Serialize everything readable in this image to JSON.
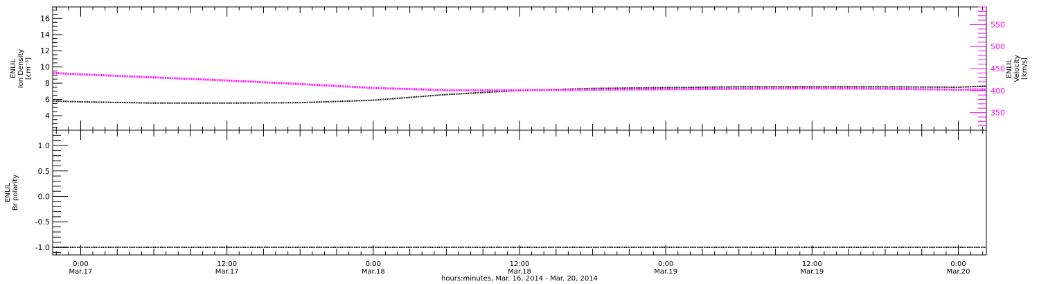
{
  "chart_data": [
    {
      "type": "line",
      "ylabel_left": [
        "ENLIL",
        "Ion Density",
        "[cm⁻³]"
      ],
      "ylabel_right": [
        "ENLIL",
        "Velocity",
        "[km/s]"
      ],
      "ylim_left": [
        2.2,
        17.4
      ],
      "ylim_right": [
        310,
        590
      ],
      "yticks_left": [
        4,
        6,
        8,
        10,
        12,
        14,
        16
      ],
      "yticks_right": [
        350,
        400,
        450,
        500,
        550
      ],
      "grid": false,
      "series": [
        {
          "axis": "left",
          "color": "#000000",
          "x_hours": [
            -2.3,
            0,
            6,
            12,
            18,
            24,
            30,
            36,
            42,
            48,
            54,
            60,
            66,
            72,
            74.3
          ],
          "values": [
            5.8,
            5.7,
            5.55,
            5.55,
            5.6,
            5.9,
            6.6,
            7.1,
            7.35,
            7.45,
            7.55,
            7.55,
            7.55,
            7.5,
            7.65
          ]
        },
        {
          "axis": "right",
          "color": "#ff00ff",
          "x_hours": [
            -2.3,
            0,
            6,
            12,
            18,
            24,
            30,
            36,
            42,
            48,
            54,
            60,
            66,
            72,
            74.3
          ],
          "values": [
            440,
            437,
            430,
            423,
            415,
            406,
            401,
            401,
            402,
            403,
            404,
            405,
            404,
            402,
            403
          ]
        }
      ]
    },
    {
      "type": "line",
      "ylabel": [
        "ENLIL",
        "Br polarity"
      ],
      "ylim": [
        -1.15,
        1.3
      ],
      "yticks": [
        -1.0,
        -0.5,
        0.0,
        0.5,
        1.0
      ],
      "grid": false,
      "series": [
        {
          "color": "#000000",
          "x_hours": [
            -2.3,
            74.3
          ],
          "values": [
            -1.0,
            -1.0
          ]
        }
      ]
    }
  ],
  "x_axis": {
    "range_hours": [
      -2.3,
      74.3
    ],
    "ticks": [
      {
        "h": 0,
        "time": "0:00",
        "date": "Mar.17"
      },
      {
        "h": 12,
        "time": "12:00",
        "date": "Mar.17"
      },
      {
        "h": 24,
        "time": "0:00",
        "date": "Mar.18"
      },
      {
        "h": 36,
        "time": "12:00",
        "date": "Mar.18"
      },
      {
        "h": 48,
        "time": "0:00",
        "date": "Mar.19"
      },
      {
        "h": 60,
        "time": "12:00",
        "date": "Mar.19"
      },
      {
        "h": 72,
        "time": "0:00",
        "date": "Mar.20"
      }
    ],
    "title": "hours:minutes, Mar. 16, 2014 - Mar. 20, 2014"
  },
  "colors": {
    "density": "#000000",
    "velocity": "#ff00ff",
    "polarity": "#000000"
  }
}
